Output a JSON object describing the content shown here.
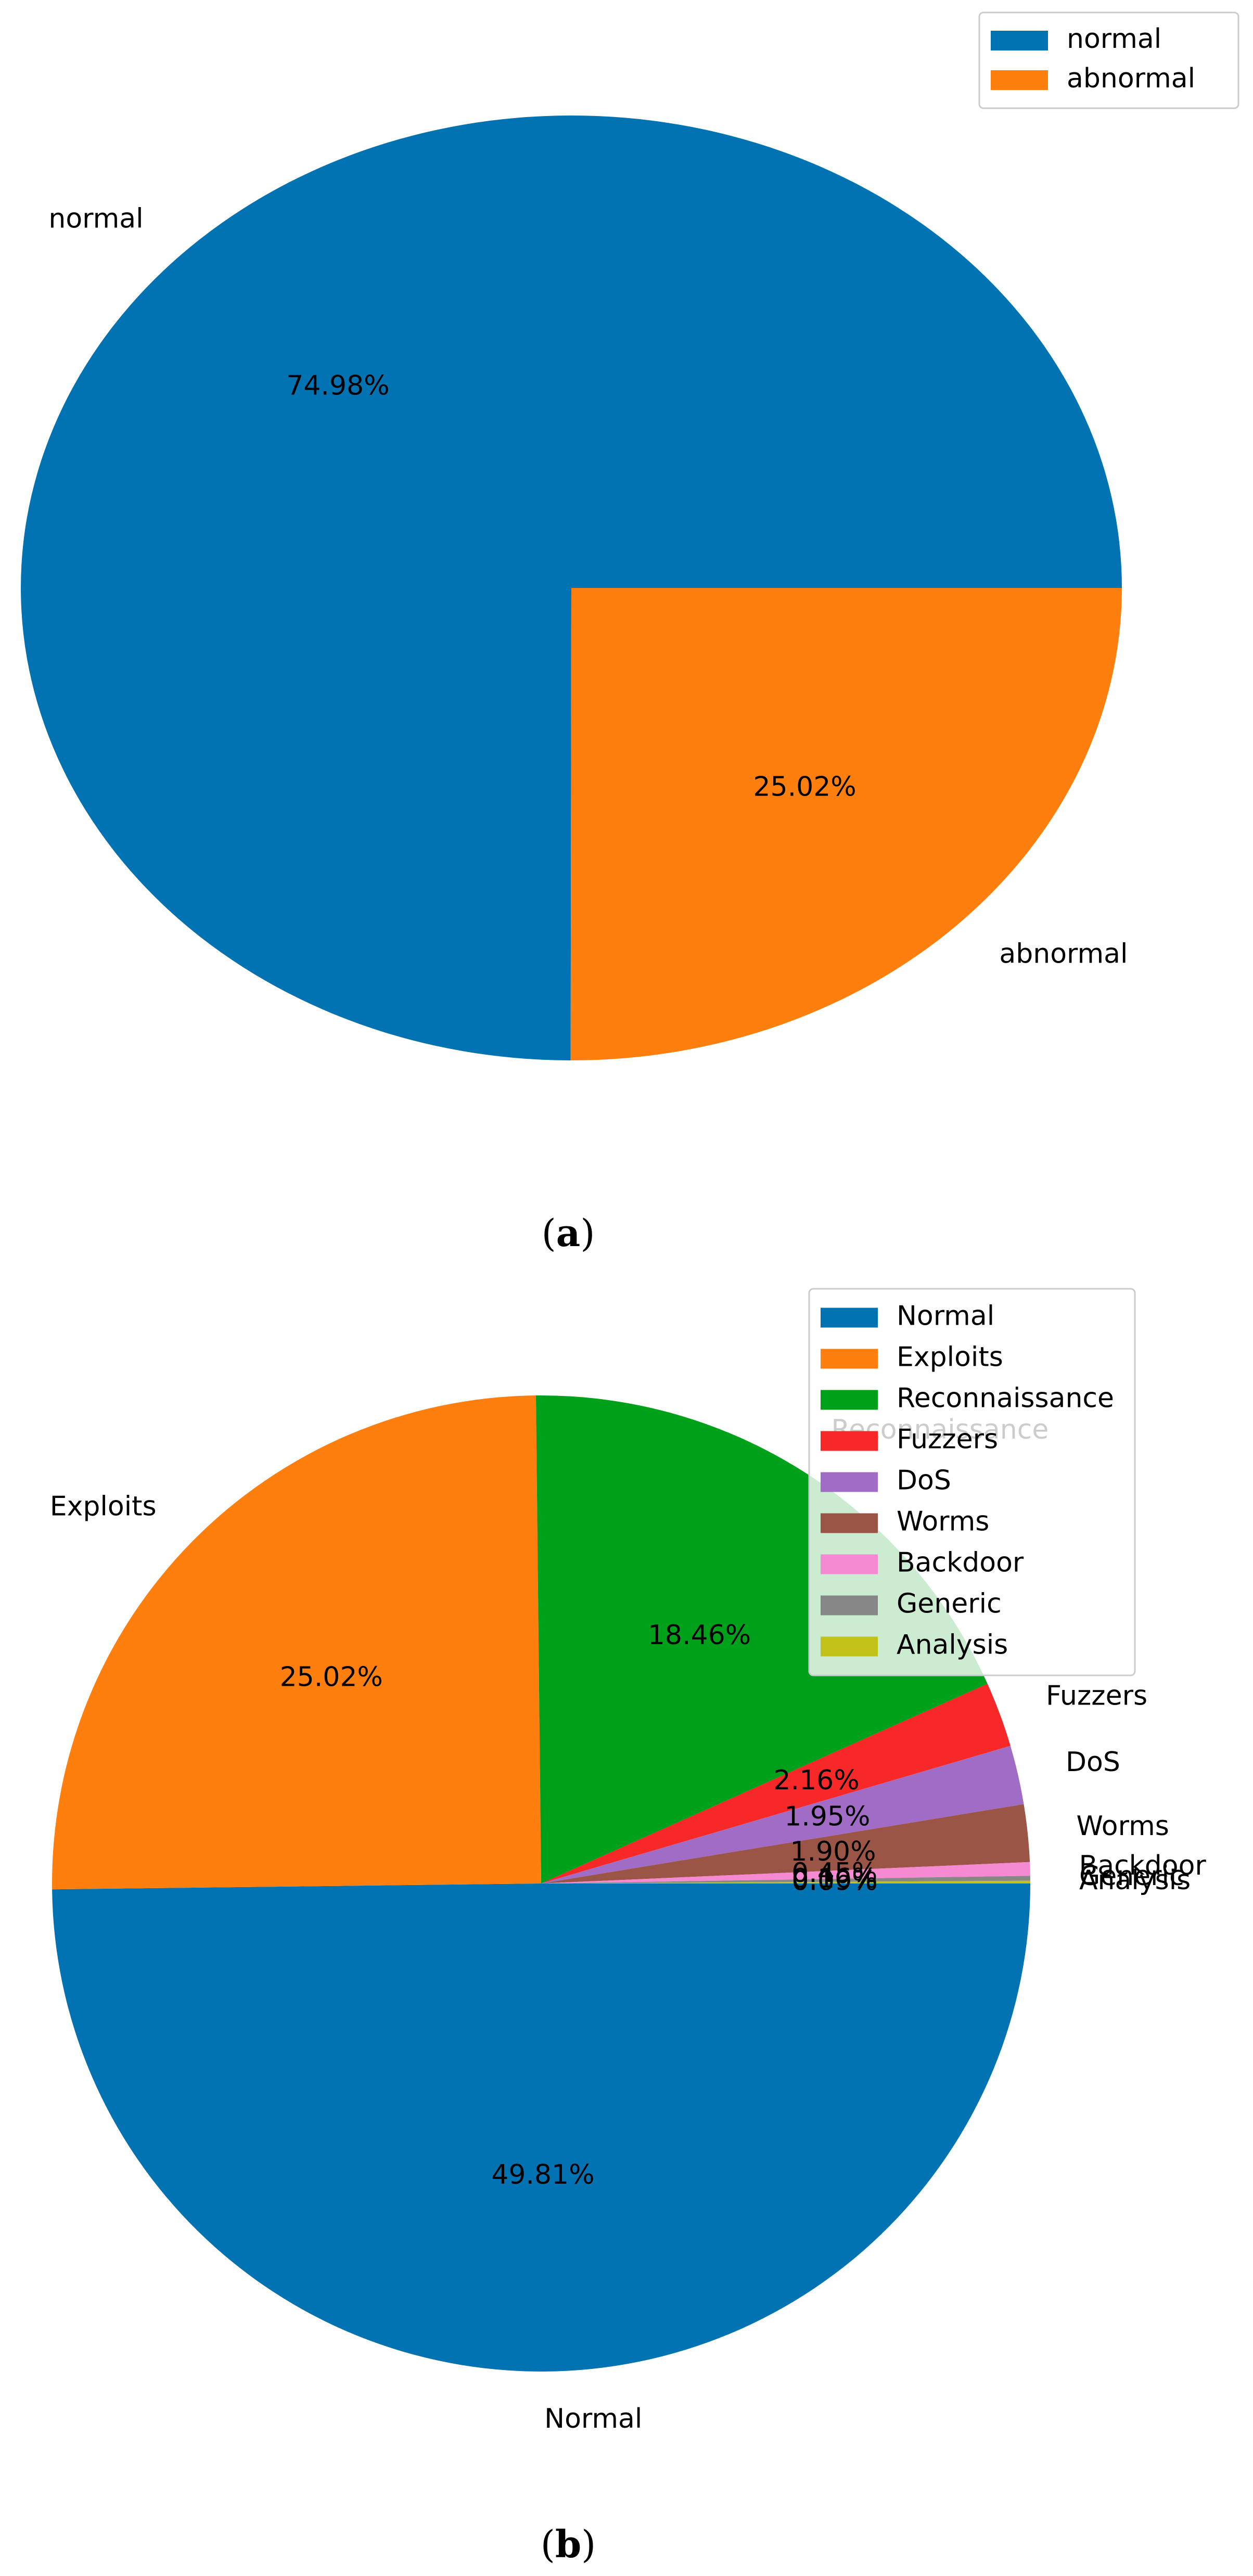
{
  "chart_data": [
    {
      "type": "pie",
      "caption_letter": "a",
      "categories": [
        "normal",
        "abnormal"
      ],
      "values": [
        74.98,
        25.02
      ],
      "percent_labels": [
        "74.98%",
        "25.02%"
      ],
      "colors": [
        "#0173b2",
        "#ff7f0e"
      ],
      "start_angle_deg": 0,
      "direction": "counterclockwise",
      "legend": {
        "position": "top-right",
        "entries": [
          "normal",
          "abnormal"
        ]
      }
    },
    {
      "type": "pie",
      "caption_letter": "b",
      "categories": [
        "Normal",
        "Exploits",
        "Reconnaissance",
        "Fuzzers",
        "DoS",
        "Worms",
        "Backdoor",
        "Generic",
        "Analysis"
      ],
      "values": [
        49.81,
        25.02,
        18.46,
        2.16,
        1.95,
        1.9,
        0.45,
        0.16,
        0.09
      ],
      "percent_labels": [
        "49.81%",
        "25.02%",
        "18.46%",
        "2.16%",
        "1.95%",
        "1.90%",
        "0.45%",
        "0.16%",
        "0.09%"
      ],
      "colors": [
        "#0173b2",
        "#ff7f0e",
        "#00a11a",
        "#f62828",
        "#a16cc6",
        "#9b5546",
        "#f58ad2",
        "#878787",
        "#c2c21b"
      ],
      "start_angle_deg": 0,
      "direction": "clockwise",
      "legend": {
        "position": "top-right",
        "entries": [
          "Normal",
          "Exploits",
          "Reconnaissance",
          "Fuzzers",
          "DoS",
          "Worms",
          "Backdoor",
          "Generic",
          "Analysis"
        ]
      }
    }
  ]
}
